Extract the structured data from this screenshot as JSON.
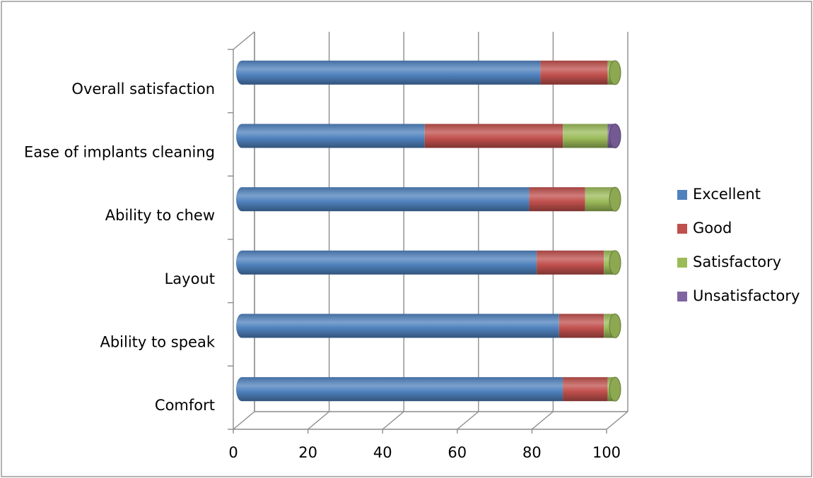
{
  "chart_data": {
    "type": "bar",
    "orientation": "horizontal",
    "stacked": true,
    "title": "",
    "xlabel": "",
    "ylabel": "",
    "xlim": [
      0,
      100
    ],
    "x_ticks": [
      0,
      20,
      40,
      60,
      80,
      100
    ],
    "grid": true,
    "legend_position": "right",
    "categories": [
      "Comfort",
      "Ability to speak",
      "Layout",
      "Ability to chew",
      "Ease of implants cleaning",
      "Overall satisfaction"
    ],
    "series": [
      {
        "name": "Excellent",
        "color": "#4F81BD",
        "values": [
          86,
          85,
          79,
          77,
          49,
          80
        ]
      },
      {
        "name": "Good",
        "color": "#C0504D",
        "values": [
          12,
          12,
          18,
          15,
          37,
          18
        ]
      },
      {
        "name": "Satisfactory",
        "color": "#9BBB59",
        "values": [
          2,
          3,
          3,
          8,
          12,
          2
        ]
      },
      {
        "name": "Unsatisfactory",
        "color": "#8064A2",
        "values": [
          0,
          0,
          0,
          0,
          2,
          0
        ]
      }
    ]
  }
}
